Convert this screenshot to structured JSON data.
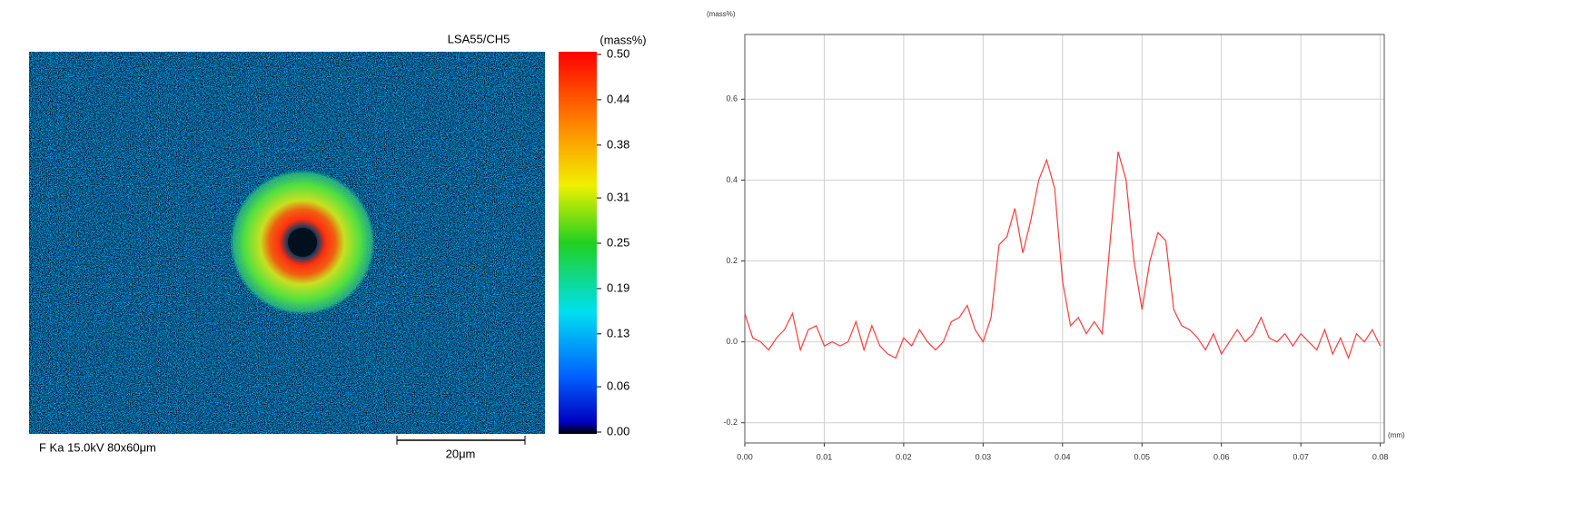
{
  "map": {
    "label": "LSA55/CH5",
    "info": "F Ka 15.0kV 80x60μm",
    "scale_bar": "20μm",
    "colorbar": {
      "title": "(mass%)",
      "lim": [
        0,
        0.5
      ],
      "ticks": [
        {
          "value": 0.5,
          "label": "0.50"
        },
        {
          "value": 0.44,
          "label": "0.44"
        },
        {
          "value": 0.38,
          "label": "0.38"
        },
        {
          "value": 0.31,
          "label": "0.31"
        },
        {
          "value": 0.25,
          "label": "0.25"
        },
        {
          "value": 0.19,
          "label": "0.19"
        },
        {
          "value": 0.13,
          "label": "0.13"
        },
        {
          "value": 0.06,
          "label": "0.06"
        },
        {
          "value": 0,
          "label": "0.00"
        }
      ]
    }
  },
  "chart_data": {
    "type": "line",
    "y_unit": "(mass%)",
    "x_unit": "(mm)",
    "x": [
      0,
      0.001,
      0.002,
      0.003,
      0.004,
      0.005,
      0.006,
      0.007,
      0.008,
      0.009,
      0.01,
      0.011,
      0.012,
      0.013,
      0.014,
      0.015,
      0.016,
      0.017,
      0.018,
      0.019,
      0.02,
      0.021,
      0.022,
      0.023,
      0.024,
      0.025,
      0.026,
      0.027,
      0.028,
      0.029,
      0.03,
      0.031,
      0.032,
      0.033,
      0.034,
      0.035,
      0.036,
      0.037,
      0.038,
      0.039,
      0.04,
      0.041,
      0.042,
      0.043,
      0.044,
      0.045,
      0.046,
      0.047,
      0.048,
      0.049,
      0.05,
      0.051,
      0.052,
      0.053,
      0.054,
      0.055,
      0.056,
      0.057,
      0.058,
      0.059,
      0.06,
      0.061,
      0.062,
      0.063,
      0.064,
      0.065,
      0.066,
      0.067,
      0.068,
      0.069,
      0.07,
      0.071,
      0.072,
      0.073,
      0.074,
      0.075,
      0.076,
      0.077,
      0.078,
      0.079,
      0.08
    ],
    "series": [
      {
        "color": "#ff3b3b",
        "values": [
          0.07,
          0.01,
          0,
          -0.02,
          0.01,
          0.03,
          0.07,
          -0.02,
          0.03,
          0.04,
          -0.01,
          0,
          -0.01,
          0,
          0.05,
          -0.02,
          0.04,
          -0.01,
          -0.03,
          -0.04,
          0.01,
          -0.01,
          0.03,
          0,
          -0.02,
          0,
          0.05,
          0.06,
          0.09,
          0.03,
          0,
          0.06,
          0.24,
          0.26,
          0.33,
          0.22,
          0.3,
          0.4,
          0.45,
          0.38,
          0.15,
          0.04,
          0.06,
          0.02,
          0.05,
          0.02,
          0.25,
          0.47,
          0.4,
          0.2,
          0.08,
          0.2,
          0.27,
          0.25,
          0.08,
          0.04,
          0.03,
          0.01,
          -0.02,
          0.02,
          -0.03,
          0,
          0.03,
          0,
          0.02,
          0.06,
          0.01,
          0,
          0.02,
          -0.01,
          0.02,
          0,
          -0.02,
          0.03,
          -0.03,
          0.01,
          -0.04,
          0.02,
          0,
          0.03,
          -0.01
        ]
      }
    ],
    "xlim": [
      0,
      0.0805
    ],
    "ylim": [
      -0.25,
      0.76
    ],
    "xticks": [
      {
        "value": 0,
        "label": "0.00"
      },
      0.01,
      0.02,
      0.03,
      0.04,
      0.05,
      0.06,
      0.07,
      0.08
    ],
    "yticks": [
      -0.2,
      {
        "value": 0,
        "label": "0.0"
      },
      0.2,
      0.4,
      0.6
    ],
    "grid": true
  }
}
